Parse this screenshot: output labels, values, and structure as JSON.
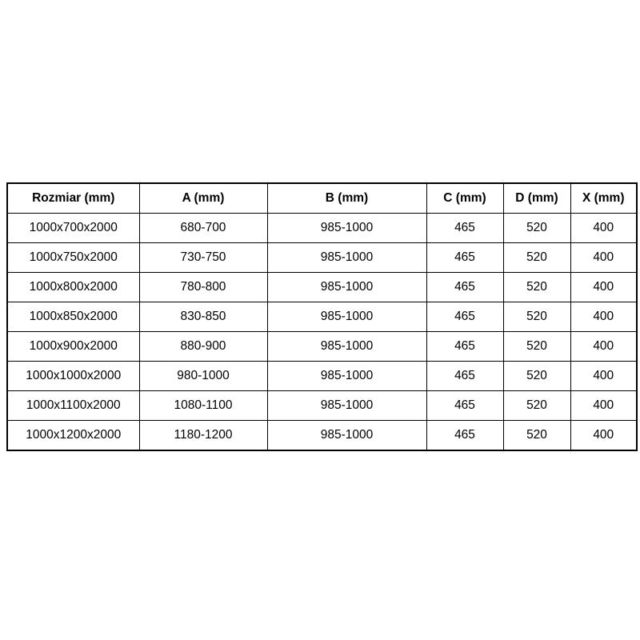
{
  "table": {
    "columns": [
      {
        "label": "Rozmiar (mm)"
      },
      {
        "label": "A (mm)"
      },
      {
        "label": "B (mm)"
      },
      {
        "label": "C (mm)"
      },
      {
        "label": "D (mm)"
      },
      {
        "label": "X (mm)"
      }
    ],
    "rows": [
      [
        "1000x700x2000",
        "680-700",
        "985-1000",
        "465",
        "520",
        "400"
      ],
      [
        "1000x750x2000",
        "730-750",
        "985-1000",
        "465",
        "520",
        "400"
      ],
      [
        "1000x800x2000",
        "780-800",
        "985-1000",
        "465",
        "520",
        "400"
      ],
      [
        "1000x850x2000",
        "830-850",
        "985-1000",
        "465",
        "520",
        "400"
      ],
      [
        "1000x900x2000",
        "880-900",
        "985-1000",
        "465",
        "520",
        "400"
      ],
      [
        "1000x1000x2000",
        "980-1000",
        "985-1000",
        "465",
        "520",
        "400"
      ],
      [
        "1000x1100x2000",
        "1080-1100",
        "985-1000",
        "465",
        "520",
        "400"
      ],
      [
        "1000x1200x2000",
        "1180-1200",
        "985-1000",
        "465",
        "520",
        "400"
      ]
    ],
    "colors": {
      "border": "#000000",
      "text": "#000000",
      "background": "#ffffff"
    }
  }
}
